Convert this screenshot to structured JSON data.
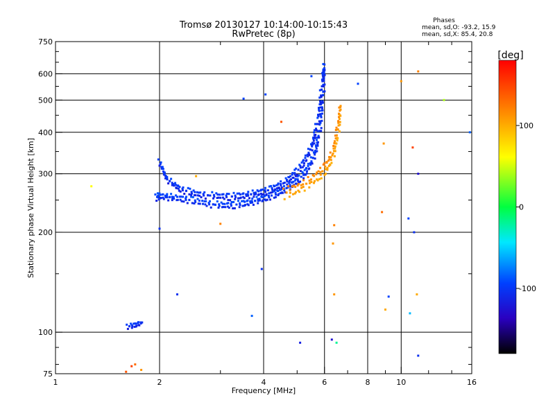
{
  "chart_data": {
    "type": "scatter",
    "title": "Tromsø 20130127 10:14:00-10:15:43",
    "subtitle": "RwPretec (8p)",
    "xlabel": "Frequency [MHz]",
    "ylabel": "Stationary phase Virtual Height [km]",
    "x_scale": "log",
    "y_scale": "log",
    "xlim": [
      1,
      16
    ],
    "ylim": [
      75,
      750
    ],
    "x_ticks": [
      1,
      2,
      4,
      6,
      8,
      10,
      16
    ],
    "y_ticks": [
      75,
      100,
      200,
      300,
      400,
      500,
      600,
      750
    ],
    "grid_x": [
      2,
      4,
      6,
      8,
      10
    ],
    "grid_y": [
      100,
      200,
      300,
      400,
      500,
      600
    ],
    "grid": true,
    "stats": {
      "heading": "Phases",
      "line1": "mean, sd,O: -93.2, 15.9",
      "line2": "mean, sd,X:  85.4, 20.8"
    },
    "colorbar": {
      "label": "[deg]",
      "range": [
        -180,
        180
      ],
      "ticks": [
        100,
        0,
        -100
      ],
      "tick_labels": [
        "100",
        "0",
        "-100"
      ]
    },
    "traces": {
      "o_mode_lower": {
        "phase": -105,
        "points": [
          [
            1.96,
            255
          ],
          [
            2.0,
            257
          ],
          [
            2.1,
            256
          ],
          [
            2.2,
            254
          ],
          [
            2.35,
            252
          ],
          [
            2.5,
            249
          ],
          [
            2.7,
            245
          ],
          [
            2.9,
            242
          ],
          [
            3.1,
            241
          ],
          [
            3.3,
            242
          ],
          [
            3.5,
            244
          ],
          [
            3.7,
            247
          ],
          [
            3.9,
            251
          ],
          [
            4.1,
            255
          ],
          [
            4.3,
            260
          ],
          [
            4.5,
            266
          ],
          [
            4.7,
            273
          ],
          [
            4.9,
            281
          ],
          [
            5.1,
            291
          ],
          [
            5.3,
            305
          ],
          [
            5.5,
            325
          ],
          [
            5.65,
            350
          ],
          [
            5.75,
            380
          ],
          [
            5.83,
            420
          ],
          [
            5.9,
            470
          ],
          [
            5.95,
            530
          ],
          [
            5.98,
            590
          ],
          [
            6.0,
            640
          ]
        ]
      },
      "o_mode_upper": {
        "phase": -110,
        "points": [
          [
            2.0,
            325
          ],
          [
            2.05,
            305
          ],
          [
            2.1,
            290
          ],
          [
            2.2,
            278
          ],
          [
            2.3,
            270
          ],
          [
            2.45,
            264
          ],
          [
            2.6,
            260
          ],
          [
            2.8,
            258
          ],
          [
            3.0,
            257
          ],
          [
            3.2,
            256
          ],
          [
            3.4,
            257
          ],
          [
            3.6,
            259
          ],
          [
            3.8,
            262
          ],
          [
            4.0,
            265
          ],
          [
            4.2,
            269
          ],
          [
            4.4,
            275
          ],
          [
            4.6,
            282
          ],
          [
            4.8,
            292
          ],
          [
            5.0,
            305
          ],
          [
            5.2,
            322
          ],
          [
            5.4,
            345
          ],
          [
            5.55,
            370
          ],
          [
            5.65,
            400
          ],
          [
            5.75,
            440
          ],
          [
            5.83,
            490
          ],
          [
            5.9,
            550
          ],
          [
            5.95,
            610
          ]
        ]
      },
      "x_mode": {
        "phase": 110,
        "points": [
          [
            4.6,
            262
          ],
          [
            4.9,
            268
          ],
          [
            5.2,
            276
          ],
          [
            5.5,
            286
          ],
          [
            5.8,
            298
          ],
          [
            6.0,
            310
          ],
          [
            6.2,
            325
          ],
          [
            6.35,
            345
          ],
          [
            6.45,
            370
          ],
          [
            6.55,
            400
          ],
          [
            6.62,
            440
          ],
          [
            6.68,
            480
          ]
        ]
      },
      "low_echo": {
        "phase": -110,
        "points": [
          [
            1.62,
            104
          ],
          [
            1.7,
            105
          ],
          [
            1.78,
            107
          ]
        ]
      },
      "scatter": {
        "points": [
          [
            1.27,
            275,
            60
          ],
          [
            2.25,
            130,
            -110
          ],
          [
            2.55,
            295,
            100
          ],
          [
            2.0,
            205,
            -110
          ],
          [
            3.0,
            212,
            120
          ],
          [
            3.5,
            505,
            -100
          ],
          [
            3.7,
            112,
            -90
          ],
          [
            3.95,
            155,
            -110
          ],
          [
            4.05,
            520,
            -100
          ],
          [
            4.5,
            430,
            140
          ],
          [
            5.1,
            93,
            -120
          ],
          [
            5.5,
            590,
            -100
          ],
          [
            6.3,
            95,
            -130
          ],
          [
            6.5,
            93,
            -20
          ],
          [
            6.4,
            210,
            120
          ],
          [
            6.35,
            185,
            110
          ],
          [
            6.4,
            130,
            110
          ],
          [
            7.5,
            560,
            -100
          ],
          [
            8.8,
            230,
            130
          ],
          [
            8.9,
            370,
            110
          ],
          [
            9.0,
            117,
            100
          ],
          [
            9.2,
            128,
            -100
          ],
          [
            10.0,
            570,
            110
          ],
          [
            10.5,
            220,
            -100
          ],
          [
            10.6,
            114,
            -60
          ],
          [
            10.8,
            360,
            150
          ],
          [
            10.9,
            200,
            -110
          ],
          [
            11.1,
            130,
            100
          ],
          [
            11.2,
            300,
            -130
          ],
          [
            11.2,
            610,
            120
          ],
          [
            11.2,
            85,
            -110
          ],
          [
            13.3,
            500,
            40
          ],
          [
            15.8,
            400,
            -90
          ],
          [
            1.6,
            76,
            140
          ],
          [
            1.66,
            79,
            150
          ],
          [
            1.7,
            80,
            130
          ],
          [
            1.77,
            77,
            110
          ]
        ]
      }
    }
  }
}
